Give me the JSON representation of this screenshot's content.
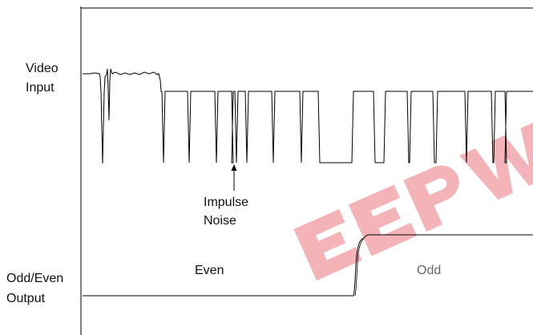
{
  "labels": {
    "video_input_line1": "Video",
    "video_input_line2": "Input",
    "impulse_line1": "Impulse",
    "impulse_line2": "Noise",
    "odd_even_line1": "Odd/Even",
    "odd_even_line2": "Output",
    "even": "Even",
    "odd": "Odd"
  },
  "watermark": {
    "text": "EEPW",
    "color": "#e0303a"
  },
  "colors": {
    "trace": "#000000",
    "frame": "#000000"
  }
}
